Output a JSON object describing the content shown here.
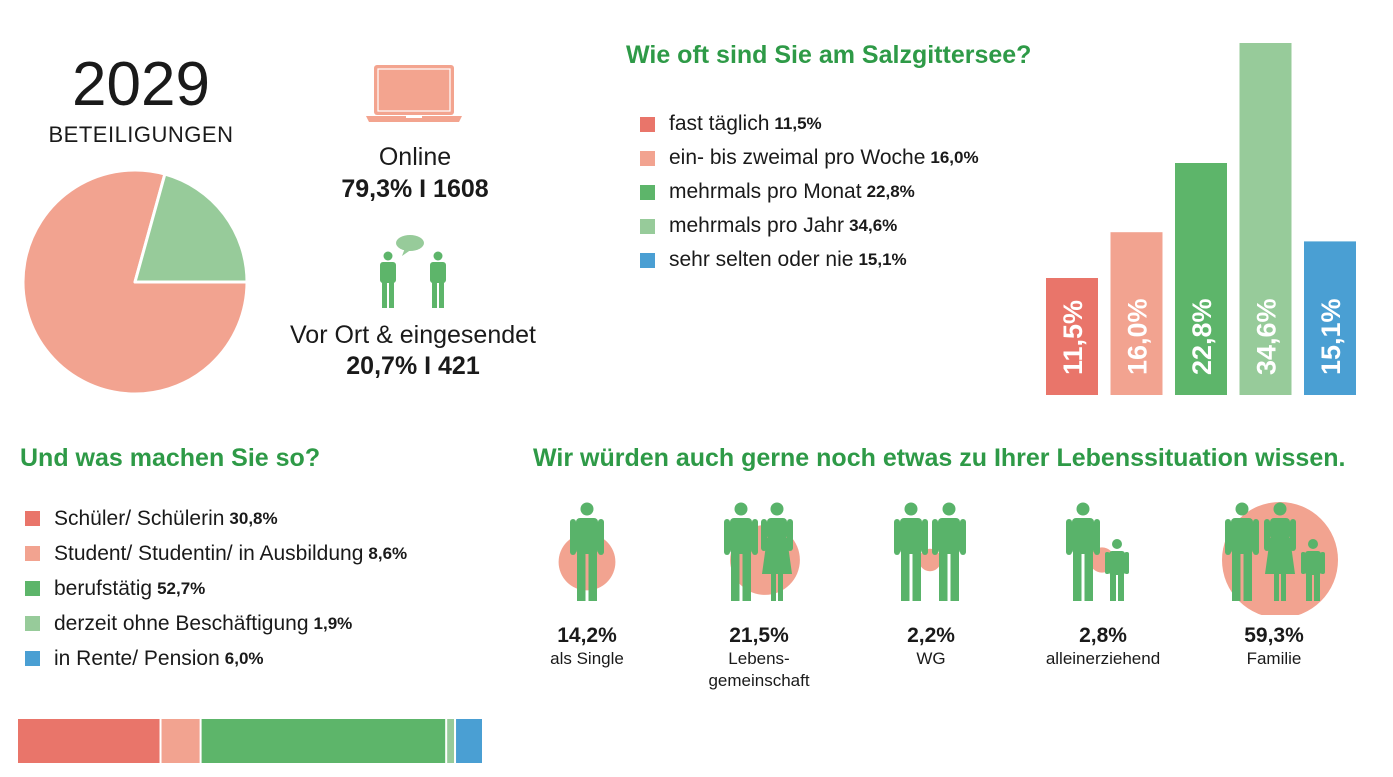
{
  "summary": {
    "total": "2029",
    "total_label": "BETEILIGUNGEN"
  },
  "channels": [
    {
      "name": "Online",
      "value": "79,3% I 1608"
    },
    {
      "name": "Vor Ort & eingesendet",
      "value": "20,7% I 421"
    }
  ],
  "colors": {
    "heading": "#2e9a47",
    "red": "#e9756a",
    "salmon": "#f2a390",
    "green": "#5db56a",
    "lightgreen": "#97cb9a",
    "blue": "#4a9fd3",
    "icon_salmon": "#f3a48f",
    "figure_green": "#59b36a",
    "circle_salmon": "#f2a390"
  },
  "icons": {
    "online": "laptop-icon",
    "vor_ort": "people-talking-icon"
  },
  "frequency": {
    "heading": "Wie oft sind Sie am Salzgittersee?",
    "items": [
      {
        "label": "fast täglich",
        "pct": "11,5%"
      },
      {
        "label": "ein- bis zweimal pro Woche",
        "pct": "16,0%"
      },
      {
        "label": "mehrmals pro Monat",
        "pct": "22,8%"
      },
      {
        "label": "mehrmals pro Jahr",
        "pct": "34,6%"
      },
      {
        "label": "sehr selten oder nie",
        "pct": "15,1%"
      }
    ]
  },
  "occupation": {
    "heading": "Und was machen Sie so?",
    "items": [
      {
        "label": "Schüler/ Schülerin",
        "pct": "30,8%"
      },
      {
        "label": "Student/ Studentin/ in Ausbildung",
        "pct": "8,6%"
      },
      {
        "label": "berufstätig",
        "pct": "52,7%"
      },
      {
        "label": "derzeit ohne Beschäftigung",
        "pct": "1,9%"
      },
      {
        "label": "in Rente/ Pension",
        "pct": "6,0%"
      }
    ]
  },
  "lebens": {
    "heading": "Wir würden auch gerne noch etwas zu Ihrer Lebenssituation wissen.",
    "items": [
      {
        "value": "14,2%",
        "label": "als Single",
        "icon": "single-person-icon"
      },
      {
        "value": "21,5%",
        "label": "Lebens-\ngemeinschaft",
        "icon": "couple-icon"
      },
      {
        "value": "2,2%",
        "label": "WG",
        "icon": "flatmates-icon"
      },
      {
        "value": "2,8%",
        "label": "alleinerziehend",
        "icon": "single-parent-icon"
      },
      {
        "value": "59,3%",
        "label": "Familie",
        "icon": "family-icon"
      }
    ]
  },
  "chart_data": [
    {
      "type": "pie",
      "categories": [
        "Online",
        "Vor Ort & eingesendet"
      ],
      "values": [
        79.3,
        20.7
      ],
      "colors": [
        "#f2a390",
        "#97cb9a"
      ]
    },
    {
      "type": "bar",
      "categories": [
        "fast täglich",
        "ein- bis zweimal pro Woche",
        "mehrmals pro Monat",
        "mehrmals pro Jahr",
        "sehr selten oder nie"
      ],
      "values": [
        11.5,
        16.0,
        22.8,
        34.6,
        15.1
      ],
      "labels": [
        "11,5%",
        "16,0%",
        "22,8%",
        "34,6%",
        "15,1%"
      ],
      "colors": [
        "#e9756a",
        "#f2a390",
        "#5db56a",
        "#97cb9a",
        "#4a9fd3"
      ],
      "ylim": [
        0,
        34.6
      ]
    },
    {
      "type": "bar",
      "orientation": "stacked-horizontal",
      "categories": [
        "Schüler/ Schülerin",
        "Student/ Studentin/ in Ausbildung",
        "berufstätig",
        "derzeit ohne Beschäftigung",
        "in Rente/ Pension"
      ],
      "values": [
        30.8,
        8.6,
        52.7,
        1.9,
        6.0
      ],
      "colors": [
        "#e9756a",
        "#f2a390",
        "#5db56a",
        "#97cb9a",
        "#4a9fd3"
      ]
    },
    {
      "type": "bar",
      "orientation": "proportional-circles",
      "categories": [
        "als Single",
        "Lebensgemeinschaft",
        "WG",
        "alleinerziehend",
        "Familie"
      ],
      "values": [
        14.2,
        21.5,
        2.2,
        2.8,
        59.3
      ]
    }
  ]
}
